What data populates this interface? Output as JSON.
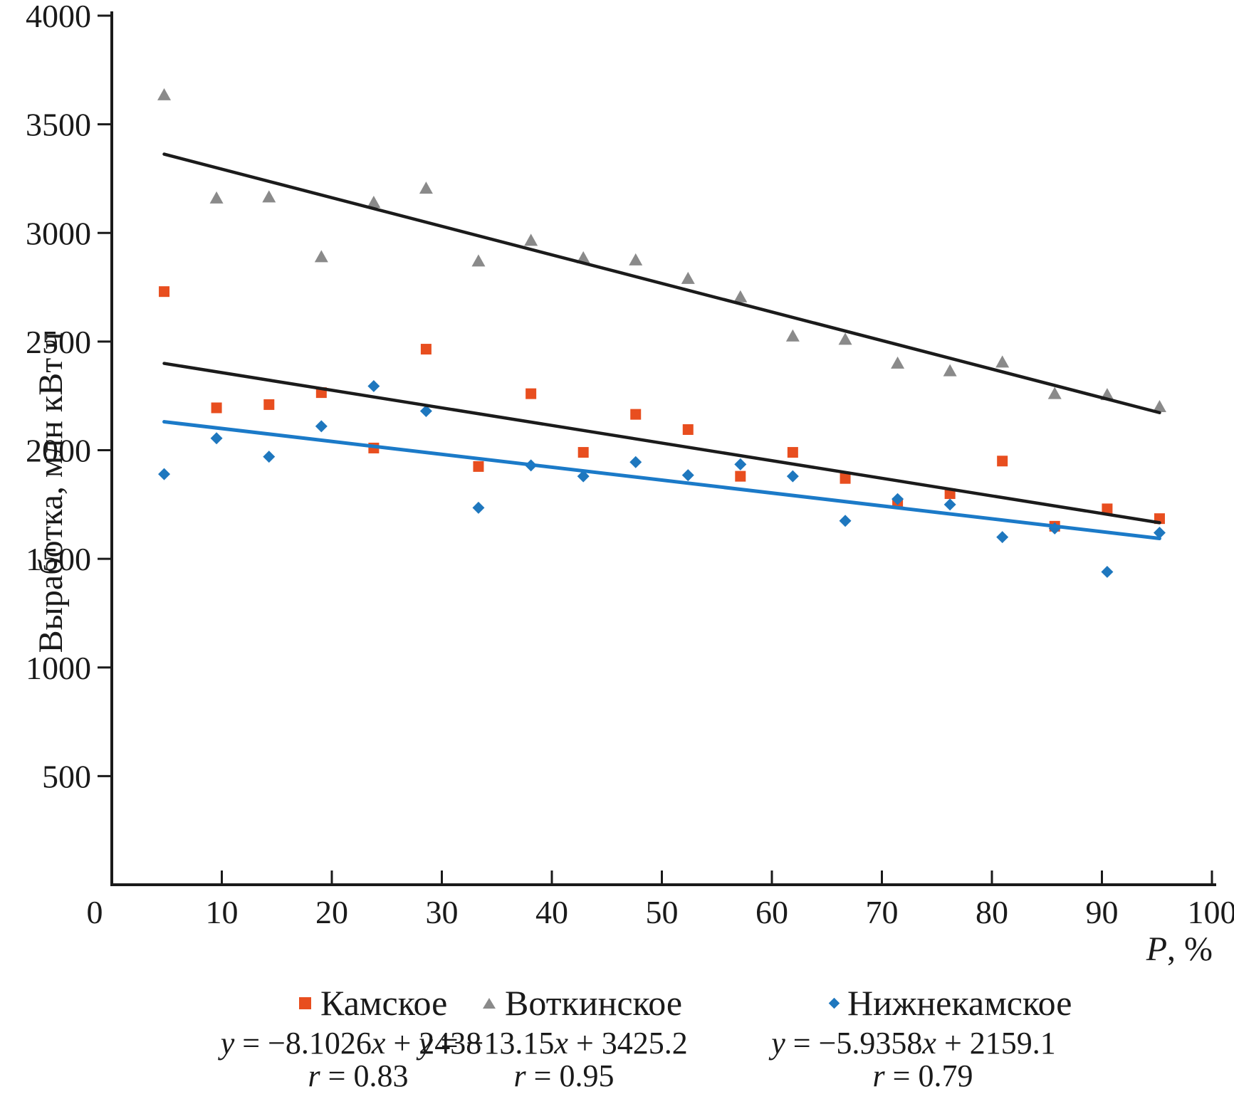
{
  "chart_data": {
    "type": "scatter",
    "title": "",
    "xlabel": "P, %",
    "ylabel": "Выработка, млн кВт ч",
    "xlim": [
      0,
      100
    ],
    "ylim": [
      0,
      4000
    ],
    "grid": false,
    "legend_position": "bottom",
    "x_ticks": [
      0,
      10,
      20,
      30,
      40,
      50,
      60,
      70,
      80,
      90,
      100
    ],
    "y_ticks": [
      500,
      1000,
      1500,
      2000,
      2500,
      3000,
      3500,
      4000
    ],
    "x": [
      4.76,
      9.52,
      14.29,
      19.05,
      23.81,
      28.57,
      33.33,
      38.1,
      42.86,
      47.62,
      52.38,
      57.14,
      61.9,
      66.67,
      71.43,
      76.19,
      80.95,
      85.71,
      90.48,
      95.24
    ],
    "trend_x_range": [
      4.76,
      95.24
    ],
    "series": [
      {
        "name": "Камское",
        "marker": "square",
        "color": "#e84e1f",
        "trend_color": "#1b1b1b",
        "values": [
          2730,
          2195,
          2210,
          2265,
          2010,
          2465,
          1925,
          2260,
          1990,
          2165,
          2095,
          1880,
          1990,
          1870,
          1755,
          1800,
          1950,
          1650,
          1730,
          1685
        ],
        "trend": {
          "slope": -8.1026,
          "intercept": 2438,
          "r": 0.83,
          "equation": "y = −8.1026x + 2438",
          "r_label": "r = 0.83"
        }
      },
      {
        "name": "Воткинское",
        "marker": "triangle",
        "color": "#8a8a8a",
        "trend_color": "#1b1b1b",
        "values": [
          3635,
          3160,
          3165,
          2890,
          3140,
          3205,
          2870,
          2965,
          2885,
          2875,
          2790,
          2705,
          2525,
          2510,
          2400,
          2365,
          2405,
          2260,
          2255,
          2200
        ],
        "trend": {
          "slope": -13.15,
          "intercept": 3425.2,
          "r": 0.95,
          "equation": "y = −13.15x + 3425.2",
          "r_label": "r = 0.95"
        }
      },
      {
        "name": "Нижнекамское",
        "marker": "diamond",
        "color": "#1e77be",
        "trend_color": "#1b7ac8",
        "values": [
          1890,
          2055,
          1970,
          2110,
          2295,
          2180,
          1735,
          1930,
          1880,
          1945,
          1885,
          1935,
          1880,
          1675,
          1775,
          1750,
          1600,
          1640,
          1440,
          1620
        ],
        "trend": {
          "slope": -5.9358,
          "intercept": 2159.1,
          "r": 0.79,
          "equation": "y = −5.9358x + 2159.1",
          "r_label": "r = 0.79"
        }
      }
    ]
  }
}
